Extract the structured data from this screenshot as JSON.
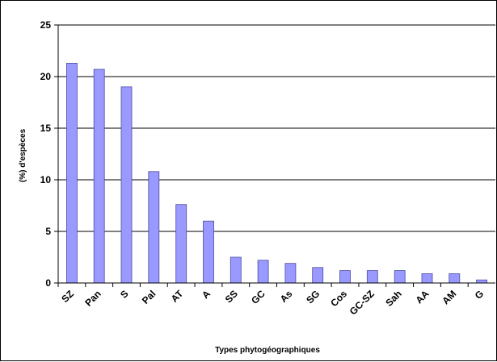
{
  "chart_data": {
    "type": "bar",
    "title": "",
    "xlabel": "Types phytogéographiques",
    "ylabel": "(%) d'espèces",
    "categories": [
      "SZ",
      "Pan",
      "S",
      "Pal",
      "AT",
      "A",
      "SS",
      "GC",
      "As",
      "SG",
      "Cos",
      "GC-SZ",
      "Sah",
      "AA",
      "AM",
      "G"
    ],
    "values": [
      21.3,
      20.7,
      19.0,
      10.8,
      7.6,
      6.0,
      2.5,
      2.2,
      1.9,
      1.5,
      1.2,
      1.2,
      1.2,
      0.9,
      0.9,
      0.3
    ],
    "ylim": [
      0,
      25
    ],
    "yticks": [
      "0",
      "5",
      "10",
      "15",
      "20",
      "25"
    ],
    "grid": true,
    "legend": "none",
    "colors": {
      "bar_fill": "#9999ff",
      "bar_stroke": "#4a4aa0",
      "grid": "#000000",
      "axis": "#000000"
    }
  }
}
